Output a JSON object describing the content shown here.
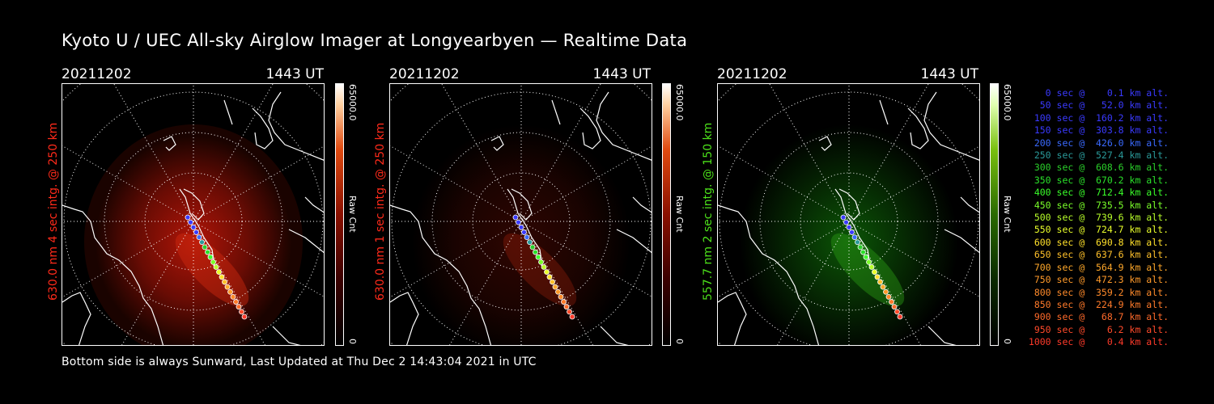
{
  "title": "Kyoto U / UEC All-sky Airglow Imager at Longyearbyen — Realtime Data",
  "footer": "Bottom side is always Sunward, Last Updated at Thu Dec  2 14:43:04 2021 in UTC",
  "panels": [
    {
      "date": "20211202",
      "time": "1443 UT",
      "side_label": "630.0 nm 4 sec intg. @ 250 km",
      "side_color": "#ff2a1a",
      "cbar_max": "65000.0",
      "cbar_min": "0",
      "cbar_title": "Raw Cnt",
      "glow_color": "#b01508",
      "glow_strength": 0.55
    },
    {
      "date": "20211202",
      "time": "1443 UT",
      "side_label": "630.0 nm 1 sec intg. @ 250 km",
      "side_color": "#ff2a1a",
      "cbar_max": "65000.0",
      "cbar_min": "0",
      "cbar_title": "Raw Cnt",
      "glow_color": "#6a0b04",
      "glow_strength": 0.35
    },
    {
      "date": "20211202",
      "time": "1443 UT",
      "side_label": "557.7 nm 2 sec intg. @ 150 km",
      "side_color": "#4ce01a",
      "cbar_max": "65000.0",
      "cbar_min": "0",
      "cbar_title": "Raw Cnt",
      "glow_color": "#0e6a08",
      "glow_strength": 0.45
    }
  ],
  "legend": [
    {
      "text": "   0 sec @    0.1 km alt.",
      "color": "#3a3aff"
    },
    {
      "text": "  50 sec @   52.0 km alt.",
      "color": "#3a3aff"
    },
    {
      "text": " 100 sec @  160.2 km alt.",
      "color": "#3a3aff"
    },
    {
      "text": " 150 sec @  303.8 km alt.",
      "color": "#3a3aff"
    },
    {
      "text": " 200 sec @  426.0 km alt.",
      "color": "#3a6aff"
    },
    {
      "text": " 250 sec @  527.4 km alt.",
      "color": "#2a9a9a"
    },
    {
      "text": " 300 sec @  608.6 km alt.",
      "color": "#2ad02a"
    },
    {
      "text": " 350 sec @  670.2 km alt.",
      "color": "#2ae02a"
    },
    {
      "text": " 400 sec @  712.4 km alt.",
      "color": "#3aff2a"
    },
    {
      "text": " 450 sec @  735.5 km alt.",
      "color": "#7aff2a"
    },
    {
      "text": " 500 sec @  739.6 km alt.",
      "color": "#b8ff2a"
    },
    {
      "text": " 550 sec @  724.7 km alt.",
      "color": "#eaff2a"
    },
    {
      "text": " 600 sec @  690.8 km alt.",
      "color": "#ffe02a"
    },
    {
      "text": " 650 sec @  637.6 km alt.",
      "color": "#ffc02a"
    },
    {
      "text": " 700 sec @  564.9 km alt.",
      "color": "#ffa82a"
    },
    {
      "text": " 750 sec @  472.3 km alt.",
      "color": "#ff9a2a"
    },
    {
      "text": " 800 sec @  359.2 km alt.",
      "color": "#ff8a2a"
    },
    {
      "text": " 850 sec @  224.9 km alt.",
      "color": "#ff7a2a"
    },
    {
      "text": " 900 sec @   68.7 km alt.",
      "color": "#ff6a2a"
    },
    {
      "text": " 950 sec @    6.2 km alt.",
      "color": "#ff4a2a"
    },
    {
      "text": "1000 sec @    0.4 km alt.",
      "color": "#ff3a2a"
    }
  ]
}
